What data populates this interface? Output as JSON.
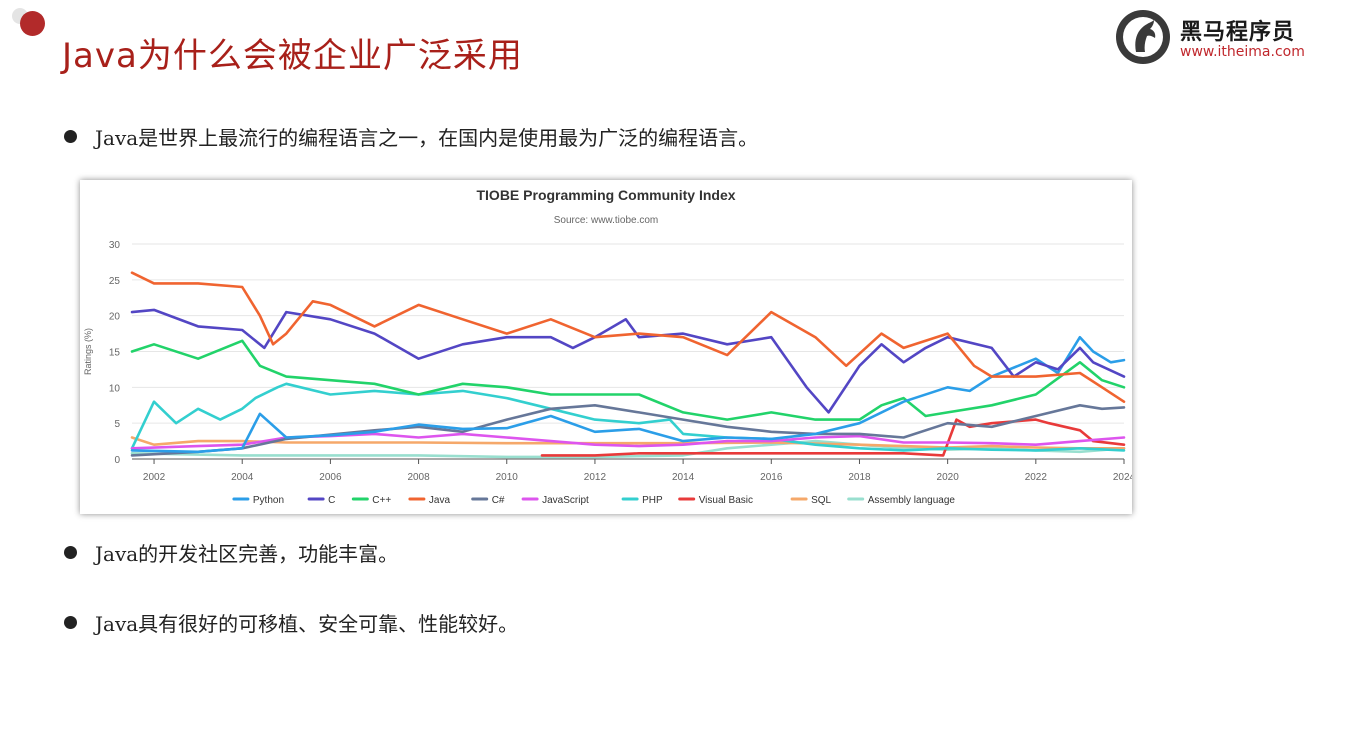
{
  "slide": {
    "title": "Java为什么会被企业广泛采用",
    "logo": {
      "name": "黑马程序员",
      "url": "www.itheima.com"
    },
    "bullets": [
      "Java是世界上最流行的编程语言之一，在国内是使用最为广泛的编程语言。",
      "Java的开发社区完善，功能丰富。",
      "Java具有很好的可移植、安全可靠、性能较好。"
    ]
  },
  "chart_data": {
    "type": "line",
    "title": "TIOBE Programming Community Index",
    "subtitle": "Source: www.tiobe.com",
    "ylabel": "Ratings (%)",
    "xlim": [
      2001.5,
      2024
    ],
    "ylim": [
      0,
      30
    ],
    "yticks": [
      0,
      5,
      10,
      15,
      20,
      25,
      30
    ],
    "xticks": [
      2002,
      2004,
      2006,
      2008,
      2010,
      2012,
      2014,
      2016,
      2018,
      2020,
      2022,
      2024
    ],
    "grid": "horizontal",
    "legend": "bottom",
    "series": [
      {
        "name": "Python",
        "color": "#2b9ee8",
        "points": [
          [
            2001.5,
            1.2
          ],
          [
            2003,
            1.0
          ],
          [
            2004,
            1.5
          ],
          [
            2004.4,
            6.3
          ],
          [
            2005,
            3.0
          ],
          [
            2006,
            3.3
          ],
          [
            2007,
            3.8
          ],
          [
            2008,
            4.8
          ],
          [
            2009,
            4.2
          ],
          [
            2010,
            4.3
          ],
          [
            2011,
            6.0
          ],
          [
            2012,
            3.8
          ],
          [
            2013,
            4.2
          ],
          [
            2014,
            2.5
          ],
          [
            2015,
            3.0
          ],
          [
            2016,
            2.8
          ],
          [
            2017,
            3.5
          ],
          [
            2018,
            5.0
          ],
          [
            2019,
            8.0
          ],
          [
            2020,
            10.0
          ],
          [
            2020.5,
            9.5
          ],
          [
            2021,
            11.5
          ],
          [
            2022,
            14.0
          ],
          [
            2022.5,
            12.0
          ],
          [
            2023,
            17.0
          ],
          [
            2023.3,
            15.0
          ],
          [
            2023.7,
            13.5
          ],
          [
            2024,
            13.8
          ]
        ]
      },
      {
        "name": "C",
        "color": "#5346c4",
        "points": [
          [
            2001.5,
            20.5
          ],
          [
            2002,
            20.8
          ],
          [
            2003,
            18.5
          ],
          [
            2004,
            18.0
          ],
          [
            2004.5,
            15.5
          ],
          [
            2005,
            20.5
          ],
          [
            2006,
            19.5
          ],
          [
            2007,
            17.5
          ],
          [
            2008,
            14.0
          ],
          [
            2009,
            16.0
          ],
          [
            2010,
            17.0
          ],
          [
            2011,
            17.0
          ],
          [
            2011.5,
            15.5
          ],
          [
            2012,
            17.0
          ],
          [
            2012.7,
            19.5
          ],
          [
            2013,
            17.0
          ],
          [
            2014,
            17.5
          ],
          [
            2015,
            16.0
          ],
          [
            2016,
            17.0
          ],
          [
            2016.8,
            10.0
          ],
          [
            2017.3,
            6.5
          ],
          [
            2018,
            13.0
          ],
          [
            2018.5,
            16.0
          ],
          [
            2019,
            13.5
          ],
          [
            2019.5,
            15.5
          ],
          [
            2020,
            17.0
          ],
          [
            2021,
            15.5
          ],
          [
            2021.5,
            11.5
          ],
          [
            2022,
            13.5
          ],
          [
            2022.5,
            12.5
          ],
          [
            2023,
            15.5
          ],
          [
            2023.3,
            13.5
          ],
          [
            2024,
            11.5
          ]
        ]
      },
      {
        "name": "C++",
        "color": "#22d36a",
        "points": [
          [
            2001.5,
            15.0
          ],
          [
            2002,
            16.0
          ],
          [
            2003,
            14.0
          ],
          [
            2004,
            16.5
          ],
          [
            2004.4,
            13.0
          ],
          [
            2005,
            11.5
          ],
          [
            2006,
            11.0
          ],
          [
            2007,
            10.5
          ],
          [
            2008,
            9.0
          ],
          [
            2009,
            10.5
          ],
          [
            2010,
            10.0
          ],
          [
            2011,
            9.0
          ],
          [
            2012,
            9.0
          ],
          [
            2013,
            9.0
          ],
          [
            2014,
            6.5
          ],
          [
            2015,
            5.5
          ],
          [
            2016,
            6.5
          ],
          [
            2017,
            5.5
          ],
          [
            2018,
            5.5
          ],
          [
            2018.5,
            7.5
          ],
          [
            2019,
            8.5
          ],
          [
            2019.5,
            6.0
          ],
          [
            2020,
            6.5
          ],
          [
            2021,
            7.5
          ],
          [
            2022,
            9.0
          ],
          [
            2023,
            13.5
          ],
          [
            2023.5,
            11.0
          ],
          [
            2024,
            10.0
          ]
        ]
      },
      {
        "name": "Java",
        "color": "#f06430",
        "points": [
          [
            2001.5,
            26.0
          ],
          [
            2002,
            24.5
          ],
          [
            2003,
            24.5
          ],
          [
            2004,
            24.0
          ],
          [
            2004.4,
            20.0
          ],
          [
            2004.7,
            16.0
          ],
          [
            2005,
            17.5
          ],
          [
            2005.6,
            22.0
          ],
          [
            2006,
            21.5
          ],
          [
            2007,
            18.5
          ],
          [
            2008,
            21.5
          ],
          [
            2009,
            19.5
          ],
          [
            2010,
            17.5
          ],
          [
            2011,
            19.5
          ],
          [
            2012,
            17.0
          ],
          [
            2013,
            17.5
          ],
          [
            2014,
            17.0
          ],
          [
            2015,
            14.5
          ],
          [
            2016,
            20.5
          ],
          [
            2017,
            17.0
          ],
          [
            2017.7,
            13.0
          ],
          [
            2018.5,
            17.5
          ],
          [
            2019,
            15.5
          ],
          [
            2020,
            17.5
          ],
          [
            2020.6,
            13.0
          ],
          [
            2021,
            11.5
          ],
          [
            2022,
            11.5
          ],
          [
            2023,
            12.0
          ],
          [
            2023.5,
            10.0
          ],
          [
            2024,
            8.0
          ]
        ]
      },
      {
        "name": "C#",
        "color": "#667799",
        "points": [
          [
            2001.5,
            0.5
          ],
          [
            2003,
            1.0
          ],
          [
            2004,
            1.5
          ],
          [
            2005,
            2.8
          ],
          [
            2007,
            4.0
          ],
          [
            2008,
            4.5
          ],
          [
            2009,
            3.8
          ],
          [
            2010,
            5.5
          ],
          [
            2011,
            7.0
          ],
          [
            2012,
            7.5
          ],
          [
            2013,
            6.5
          ],
          [
            2014,
            5.5
          ],
          [
            2015,
            4.5
          ],
          [
            2016,
            3.8
          ],
          [
            2017,
            3.5
          ],
          [
            2018,
            3.5
          ],
          [
            2019,
            3.0
          ],
          [
            2020,
            5.0
          ],
          [
            2021,
            4.5
          ],
          [
            2022,
            6.0
          ],
          [
            2023,
            7.5
          ],
          [
            2023.5,
            7.0
          ],
          [
            2024,
            7.2
          ]
        ]
      },
      {
        "name": "JavaScript",
        "color": "#dd55ee",
        "points": [
          [
            2001.5,
            1.5
          ],
          [
            2003,
            1.8
          ],
          [
            2004,
            2.0
          ],
          [
            2005,
            3.0
          ],
          [
            2006,
            3.2
          ],
          [
            2007,
            3.5
          ],
          [
            2008,
            3.0
          ],
          [
            2009,
            3.5
          ],
          [
            2010,
            3.0
          ],
          [
            2011,
            2.5
          ],
          [
            2012,
            2.0
          ],
          [
            2013,
            1.8
          ],
          [
            2014,
            2.0
          ],
          [
            2015,
            2.5
          ],
          [
            2016,
            2.5
          ],
          [
            2017,
            3.0
          ],
          [
            2018,
            3.2
          ],
          [
            2019,
            2.3
          ],
          [
            2020,
            2.3
          ],
          [
            2021,
            2.2
          ],
          [
            2022,
            2.0
          ],
          [
            2023,
            2.5
          ],
          [
            2024,
            3.0
          ]
        ]
      },
      {
        "name": "PHP",
        "color": "#33cfcf",
        "points": [
          [
            2001.5,
            1.5
          ],
          [
            2002,
            8.0
          ],
          [
            2002.5,
            5.0
          ],
          [
            2003,
            7.0
          ],
          [
            2003.5,
            5.5
          ],
          [
            2004,
            7.0
          ],
          [
            2004.3,
            8.5
          ],
          [
            2004.8,
            10.0
          ],
          [
            2005,
            10.5
          ],
          [
            2006,
            9.0
          ],
          [
            2007,
            9.5
          ],
          [
            2008,
            9.0
          ],
          [
            2009,
            9.5
          ],
          [
            2010,
            8.5
          ],
          [
            2011,
            7.0
          ],
          [
            2012,
            5.5
          ],
          [
            2013,
            5.0
          ],
          [
            2013.7,
            5.5
          ],
          [
            2014,
            3.5
          ],
          [
            2015,
            3.0
          ],
          [
            2016,
            2.8
          ],
          [
            2017,
            2.0
          ],
          [
            2018,
            1.5
          ],
          [
            2019,
            1.2
          ],
          [
            2020,
            1.5
          ],
          [
            2021,
            1.3
          ],
          [
            2022,
            1.2
          ],
          [
            2023,
            1.5
          ],
          [
            2024,
            1.2
          ]
        ]
      },
      {
        "name": "Visual Basic",
        "color": "#e83a3a",
        "points": [
          [
            2010.8,
            0.5
          ],
          [
            2012,
            0.5
          ],
          [
            2013,
            0.8
          ],
          [
            2014,
            0.8
          ],
          [
            2016,
            0.8
          ],
          [
            2018,
            0.8
          ],
          [
            2019,
            0.8
          ],
          [
            2019.9,
            0.5
          ],
          [
            2020.2,
            5.5
          ],
          [
            2020.5,
            4.5
          ],
          [
            2021,
            5.0
          ],
          [
            2022,
            5.5
          ],
          [
            2022.3,
            5.0
          ],
          [
            2023,
            4.0
          ],
          [
            2023.3,
            2.5
          ],
          [
            2024,
            2.0
          ]
        ]
      },
      {
        "name": "SQL",
        "color": "#f5a86a",
        "points": [
          [
            2001.5,
            3.0
          ],
          [
            2002,
            2.0
          ],
          [
            2003,
            2.5
          ],
          [
            2004,
            2.5
          ],
          [
            2005,
            2.3
          ],
          [
            2008,
            2.3
          ],
          [
            2010,
            2.2
          ],
          [
            2012,
            2.2
          ],
          [
            2014,
            2.2
          ],
          [
            2016,
            2.3
          ],
          [
            2018,
            2.0
          ],
          [
            2019,
            1.8
          ],
          [
            2020,
            1.6
          ],
          [
            2021,
            1.8
          ],
          [
            2022,
            1.6
          ],
          [
            2023,
            1.5
          ],
          [
            2024,
            1.5
          ]
        ]
      },
      {
        "name": "Assembly language",
        "color": "#99dfcf",
        "points": [
          [
            2001.5,
            0.8
          ],
          [
            2004,
            0.5
          ],
          [
            2008,
            0.5
          ],
          [
            2010,
            0.3
          ],
          [
            2012,
            0.3
          ],
          [
            2014,
            0.5
          ],
          [
            2015,
            1.5
          ],
          [
            2016,
            2.0
          ],
          [
            2017,
            2.5
          ],
          [
            2018,
            2.0
          ],
          [
            2019,
            1.5
          ],
          [
            2020,
            1.3
          ],
          [
            2021,
            1.5
          ],
          [
            2022,
            1.2
          ],
          [
            2023,
            1.0
          ],
          [
            2024,
            1.5
          ]
        ]
      }
    ]
  }
}
